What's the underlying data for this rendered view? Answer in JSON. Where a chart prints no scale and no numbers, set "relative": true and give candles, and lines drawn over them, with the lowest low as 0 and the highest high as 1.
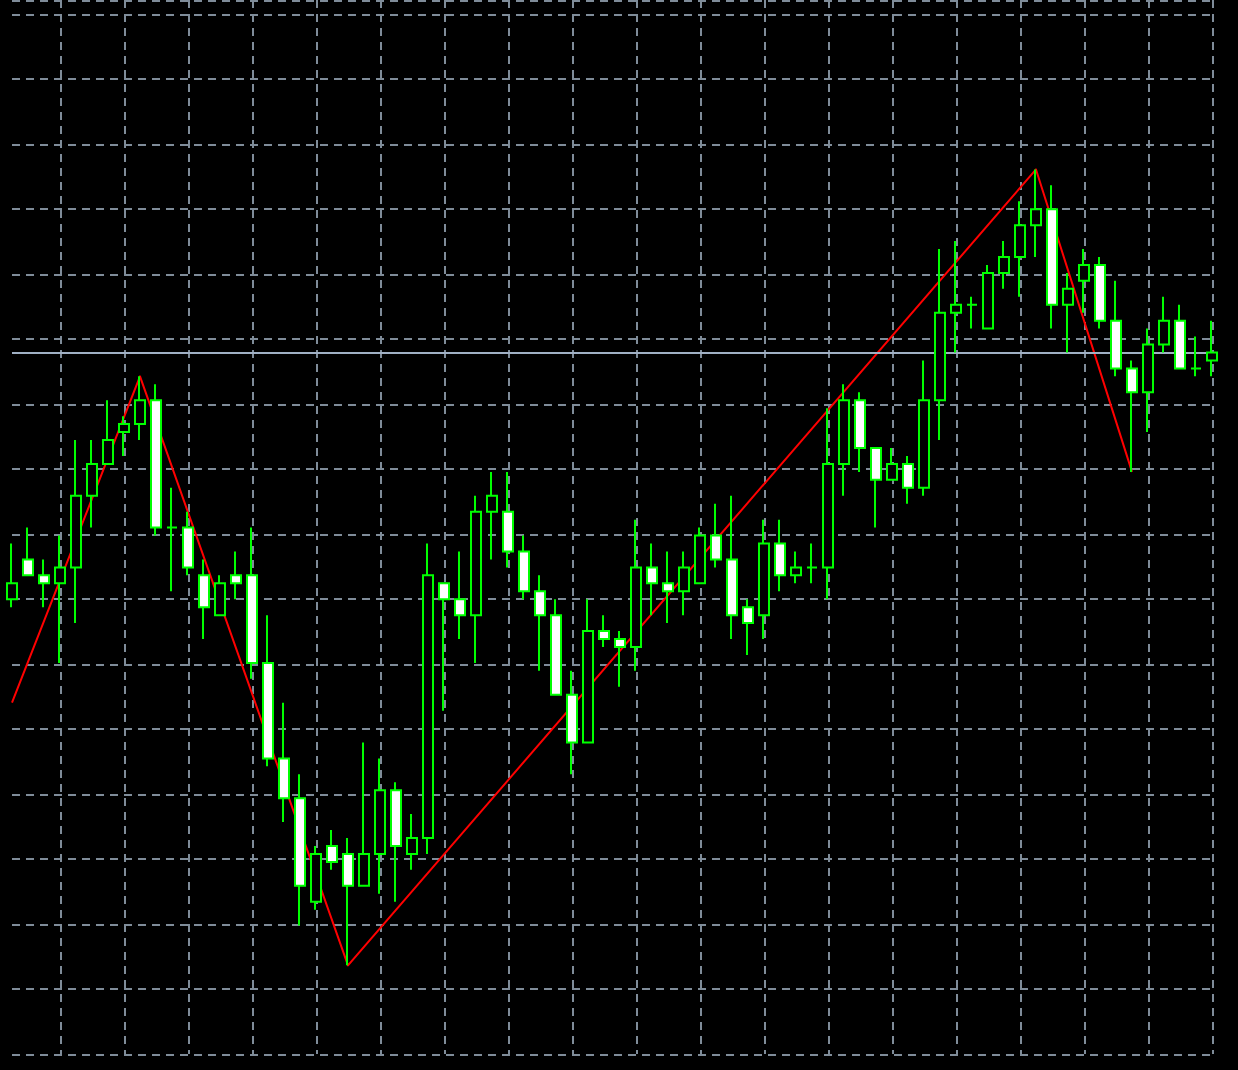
{
  "chart_data": {
    "type": "candlestick",
    "relative": true,
    "grid": true,
    "categories": [
      null,
      null,
      null,
      null,
      null,
      null,
      null,
      null,
      null,
      null,
      null,
      null,
      null,
      null,
      null,
      null,
      null,
      null,
      null,
      null,
      null,
      null,
      null,
      null,
      null,
      null,
      null,
      null,
      null,
      null,
      null,
      null,
      null,
      null,
      null,
      null,
      null,
      null,
      null,
      null,
      null,
      null,
      null,
      null,
      null,
      null,
      null,
      null,
      null,
      null,
      null,
      null,
      null,
      null,
      null,
      null,
      null,
      null,
      null,
      null,
      null,
      null,
      null,
      null,
      null,
      null,
      null,
      null,
      null,
      null,
      null,
      null,
      null,
      null,
      null,
      null
    ],
    "ref_lines": [
      {
        "axis": "y",
        "value": 0.77,
        "color": "#a0b0c4",
        "line_style": "solid"
      }
    ],
    "series": [
      {
        "type": "candlestick",
        "color": "#00ff00",
        "ohlc": [
          [
            0.46,
            0.53,
            0.45,
            0.48
          ],
          [
            0.51,
            0.55,
            0.49,
            0.49
          ],
          [
            0.49,
            0.51,
            0.45,
            0.48
          ],
          [
            0.48,
            0.54,
            0.38,
            0.5
          ],
          [
            0.5,
            0.66,
            0.43,
            0.59
          ],
          [
            0.59,
            0.66,
            0.55,
            0.63
          ],
          [
            0.63,
            0.71,
            0.63,
            0.66
          ],
          [
            0.67,
            0.69,
            0.64,
            0.68
          ],
          [
            0.68,
            0.74,
            0.66,
            0.71
          ],
          [
            0.71,
            0.73,
            0.54,
            0.55
          ],
          [
            0.55,
            0.6,
            0.47,
            0.55
          ],
          [
            0.55,
            0.57,
            0.49,
            0.5
          ],
          [
            0.49,
            0.51,
            0.41,
            0.45
          ],
          [
            0.44,
            0.49,
            0.44,
            0.48
          ],
          [
            0.49,
            0.52,
            0.46,
            0.48
          ],
          [
            0.49,
            0.55,
            0.36,
            0.38
          ],
          [
            0.38,
            0.44,
            0.25,
            0.26
          ],
          [
            0.26,
            0.33,
            0.18,
            0.21
          ],
          [
            0.21,
            0.24,
            0.05,
            0.1
          ],
          [
            0.08,
            0.15,
            0.07,
            0.14
          ],
          [
            0.15,
            0.17,
            0.12,
            0.13
          ],
          [
            0.14,
            0.16,
            0,
            0.1
          ],
          [
            0.1,
            0.28,
            0.1,
            0.14
          ],
          [
            0.14,
            0.26,
            0.09,
            0.22
          ],
          [
            0.22,
            0.23,
            0.08,
            0.15
          ],
          [
            0.14,
            0.19,
            0.12,
            0.16
          ],
          [
            0.16,
            0.53,
            0.14,
            0.49
          ],
          [
            0.48,
            0.48,
            0.32,
            0.46
          ],
          [
            0.46,
            0.52,
            0.41,
            0.44
          ],
          [
            0.44,
            0.59,
            0.38,
            0.57
          ],
          [
            0.57,
            0.62,
            0.51,
            0.59
          ],
          [
            0.57,
            0.62,
            0.5,
            0.52
          ],
          [
            0.52,
            0.54,
            0.46,
            0.47
          ],
          [
            0.47,
            0.49,
            0.37,
            0.44
          ],
          [
            0.44,
            0.46,
            0.34,
            0.34
          ],
          [
            0.34,
            0.37,
            0.24,
            0.28
          ],
          [
            0.28,
            0.46,
            0.28,
            0.42
          ],
          [
            0.42,
            0.44,
            0.4,
            0.41
          ],
          [
            0.41,
            0.42,
            0.35,
            0.4
          ],
          [
            0.4,
            0.56,
            0.37,
            0.5
          ],
          [
            0.5,
            0.53,
            0.44,
            0.48
          ],
          [
            0.48,
            0.52,
            0.43,
            0.47
          ],
          [
            0.47,
            0.52,
            0.44,
            0.5
          ],
          [
            0.48,
            0.55,
            0.48,
            0.54
          ],
          [
            0.54,
            0.58,
            0.5,
            0.51
          ],
          [
            0.51,
            0.59,
            0.41,
            0.44
          ],
          [
            0.45,
            0.46,
            0.39,
            0.43
          ],
          [
            0.44,
            0.56,
            0.41,
            0.53
          ],
          [
            0.53,
            0.56,
            0.47,
            0.49
          ],
          [
            0.49,
            0.52,
            0.48,
            0.5
          ],
          [
            0.5,
            0.53,
            0.48,
            0.5
          ],
          [
            0.5,
            0.7,
            0.46,
            0.63
          ],
          [
            0.63,
            0.73,
            0.59,
            0.71
          ],
          [
            0.71,
            0.72,
            0.62,
            0.65
          ],
          [
            0.65,
            0.65,
            0.55,
            0.61
          ],
          [
            0.61,
            0.65,
            0.61,
            0.63
          ],
          [
            0.63,
            0.64,
            0.58,
            0.6
          ],
          [
            0.6,
            0.76,
            0.59,
            0.71
          ],
          [
            0.71,
            0.9,
            0.66,
            0.82
          ],
          [
            0.82,
            0.91,
            0.77,
            0.83
          ],
          [
            0.83,
            0.84,
            0.8,
            0.83
          ],
          [
            0.8,
            0.88,
            0.8,
            0.87
          ],
          [
            0.87,
            0.91,
            0.85,
            0.89
          ],
          [
            0.89,
            0.96,
            0.84,
            0.93
          ],
          [
            0.93,
            1,
            0.89,
            0.95
          ],
          [
            0.95,
            0.98,
            0.8,
            0.83
          ],
          [
            0.83,
            0.87,
            0.77,
            0.85
          ],
          [
            0.86,
            0.9,
            0.82,
            0.88
          ],
          [
            0.88,
            0.89,
            0.8,
            0.81
          ],
          [
            0.81,
            0.86,
            0.74,
            0.75
          ],
          [
            0.75,
            0.76,
            0.62,
            0.72
          ],
          [
            0.72,
            0.8,
            0.67,
            0.78
          ],
          [
            0.78,
            0.84,
            0.77,
            0.81
          ],
          [
            0.81,
            0.83,
            0.75,
            0.75
          ],
          [
            0.75,
            0.79,
            0.74,
            0.75
          ],
          [
            0.76,
            0.81,
            0.74,
            0.77
          ]
        ]
      },
      {
        "type": "line",
        "color": "#ff0000",
        "values": [
          0.33,
          null,
          null,
          null,
          null,
          null,
          null,
          null,
          0.74,
          null,
          null,
          null,
          null,
          null,
          null,
          null,
          null,
          null,
          null,
          null,
          null,
          0,
          null,
          null,
          null,
          null,
          null,
          null,
          null,
          null,
          null,
          null,
          null,
          null,
          null,
          null,
          null,
          null,
          null,
          null,
          null,
          null,
          null,
          null,
          null,
          null,
          null,
          null,
          null,
          null,
          null,
          null,
          null,
          null,
          null,
          null,
          null,
          null,
          null,
          null,
          null,
          null,
          null,
          null,
          1,
          null,
          null,
          null,
          null,
          null,
          0.62,
          null,
          null,
          null,
          null,
          null
        ]
      }
    ]
  }
}
